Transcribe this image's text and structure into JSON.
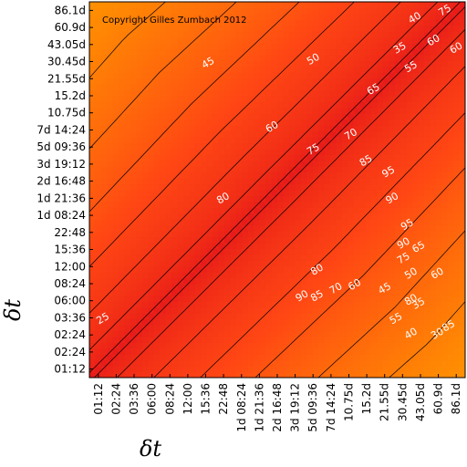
{
  "chart_data": {
    "type": "heatmap",
    "copyright": "Copyright Gilles Zumbach 2012",
    "xlabel": "δt",
    "ylabel": "δt",
    "ticks": [
      "01:12",
      "02:24",
      "03:36",
      "06:00",
      "08:24",
      "12:00",
      "15:36",
      "22:48",
      "1d 08:24",
      "1d 21:36",
      "2d 16:48",
      "3d 19:12",
      "5d 09:36",
      "7d 14:24",
      "10.75d",
      "15.2d",
      "21.55d",
      "30.45d",
      "43.05d",
      "60.9d",
      "86.1d"
    ],
    "ticks_y": [
      "01:12",
      "02:24",
      "02:24",
      "03:36",
      "06:00",
      "08:24",
      "12:00",
      "15:36",
      "22:48",
      "1d 08:24",
      "1d 21:36",
      "2d 16:48",
      "3d 19:12",
      "5d 09:36",
      "7d 14:24",
      "10.75d",
      "15.2d",
      "21.55d",
      "30.45d",
      "43.05d",
      "60.9d",
      "86.1d"
    ],
    "contour_levels": [
      25,
      30,
      35,
      40,
      45,
      50,
      55,
      60,
      65,
      70,
      75,
      80,
      85,
      90,
      95
    ],
    "colorscale": [
      "#ffff33",
      "#ffcc11",
      "#ff9900",
      "#ff3311",
      "#e61a1a"
    ],
    "contour_labels": [
      {
        "text": "25",
        "lx": 0.04,
        "ly": 0.85
      },
      {
        "text": "35",
        "lx": 0.83,
        "ly": 0.13
      },
      {
        "text": "45",
        "lx": 0.32,
        "ly": 0.17
      },
      {
        "text": "50",
        "lx": 0.6,
        "ly": 0.16
      },
      {
        "text": "65",
        "lx": 0.76,
        "ly": 0.24
      },
      {
        "text": "70",
        "lx": 0.7,
        "ly": 0.36
      },
      {
        "text": "85",
        "lx": 0.74,
        "ly": 0.43
      },
      {
        "text": "95",
        "lx": 0.8,
        "ly": 0.46
      },
      {
        "text": "90",
        "lx": 0.81,
        "ly": 0.53
      },
      {
        "text": "95",
        "lx": 0.85,
        "ly": 0.6
      },
      {
        "text": "90",
        "lx": 0.84,
        "ly": 0.65
      },
      {
        "text": "60",
        "lx": 0.49,
        "ly": 0.34
      },
      {
        "text": "75",
        "lx": 0.6,
        "ly": 0.4
      },
      {
        "text": "80",
        "lx": 0.36,
        "ly": 0.53
      },
      {
        "text": "80",
        "lx": 0.61,
        "ly": 0.72
      },
      {
        "text": "90",
        "lx": 0.57,
        "ly": 0.79
      },
      {
        "text": "85",
        "lx": 0.61,
        "ly": 0.79
      },
      {
        "text": "70",
        "lx": 0.66,
        "ly": 0.77
      },
      {
        "text": "60",
        "lx": 0.71,
        "ly": 0.76
      },
      {
        "text": "45",
        "lx": 0.79,
        "ly": 0.77
      },
      {
        "text": "75",
        "lx": 0.84,
        "ly": 0.69
      },
      {
        "text": "65",
        "lx": 0.88,
        "ly": 0.66
      },
      {
        "text": "50",
        "lx": 0.86,
        "ly": 0.73
      },
      {
        "text": "55",
        "lx": 0.82,
        "ly": 0.85
      },
      {
        "text": "40",
        "lx": 0.86,
        "ly": 0.89
      },
      {
        "text": "35",
        "lx": 0.88,
        "ly": 0.81
      },
      {
        "text": "30",
        "lx": 0.93,
        "ly": 0.89
      },
      {
        "text": "60",
        "lx": 0.93,
        "ly": 0.73
      },
      {
        "text": "85",
        "lx": 0.96,
        "ly": 0.87
      },
      {
        "text": "80",
        "lx": 0.86,
        "ly": 0.8
      },
      {
        "text": "55",
        "lx": 0.86,
        "ly": 0.18
      },
      {
        "text": "60",
        "lx": 0.92,
        "ly": 0.11
      },
      {
        "text": "40",
        "lx": 0.87,
        "ly": 0.05
      },
      {
        "text": "75",
        "lx": 0.95,
        "ly": 0.03
      },
      {
        "text": "60",
        "lx": 0.98,
        "ly": 0.13
      }
    ]
  }
}
